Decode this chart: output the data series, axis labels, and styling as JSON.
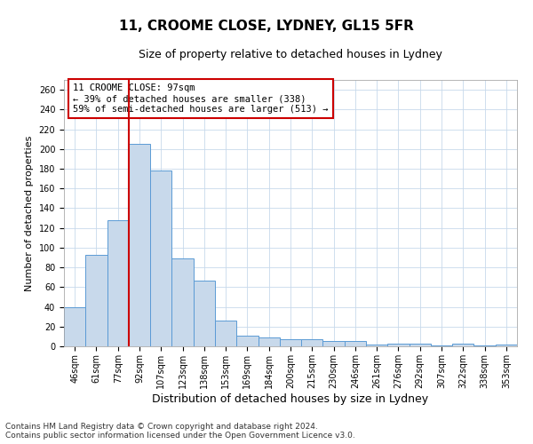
{
  "title1": "11, CROOME CLOSE, LYDNEY, GL15 5FR",
  "title2": "Size of property relative to detached houses in Lydney",
  "xlabel": "Distribution of detached houses by size in Lydney",
  "ylabel": "Number of detached properties",
  "categories": [
    "46sqm",
    "61sqm",
    "77sqm",
    "92sqm",
    "107sqm",
    "123sqm",
    "138sqm",
    "153sqm",
    "169sqm",
    "184sqm",
    "200sqm",
    "215sqm",
    "230sqm",
    "246sqm",
    "261sqm",
    "276sqm",
    "292sqm",
    "307sqm",
    "322sqm",
    "338sqm",
    "353sqm"
  ],
  "values": [
    40,
    93,
    128,
    205,
    178,
    89,
    67,
    26,
    11,
    9,
    7,
    7,
    5,
    5,
    2,
    3,
    3,
    1,
    3,
    1,
    2
  ],
  "bar_color": "#c8d9eb",
  "bar_edge_color": "#5b9bd5",
  "vline_index": 3,
  "vline_color": "#cc0000",
  "ylim": [
    0,
    270
  ],
  "yticks": [
    0,
    20,
    40,
    60,
    80,
    100,
    120,
    140,
    160,
    180,
    200,
    220,
    240,
    260
  ],
  "annotation_text": "11 CROOME CLOSE: 97sqm\n← 39% of detached houses are smaller (338)\n59% of semi-detached houses are larger (513) →",
  "annotation_box_color": "#ffffff",
  "annotation_box_edge_color": "#cc0000",
  "footer_line1": "Contains HM Land Registry data © Crown copyright and database right 2024.",
  "footer_line2": "Contains public sector information licensed under the Open Government Licence v3.0.",
  "background_color": "#ffffff",
  "grid_color": "#c8d9eb",
  "title1_fontsize": 11,
  "title2_fontsize": 9,
  "xlabel_fontsize": 9,
  "ylabel_fontsize": 8,
  "tick_fontsize": 7,
  "annotation_fontsize": 7.5,
  "footer_fontsize": 6.5
}
